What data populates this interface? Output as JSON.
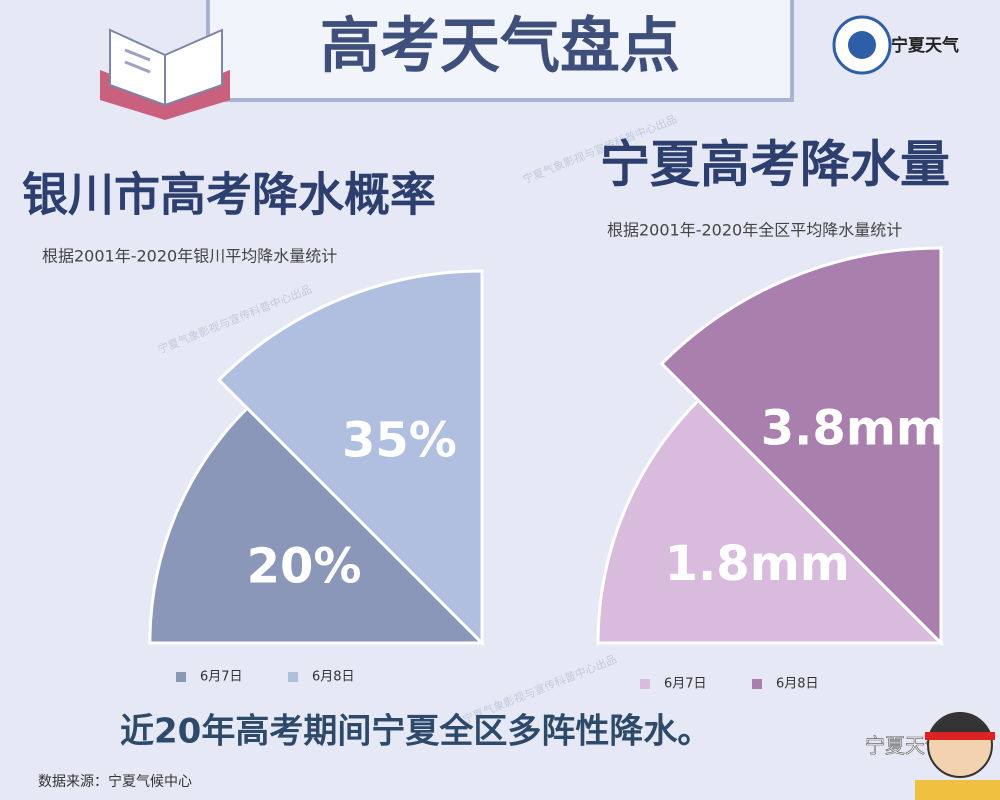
{
  "header": {
    "title": "高考天气盘点",
    "logo": "宁夏天气",
    "watermark": "宁夏气象影视与宣传科普中心出品"
  },
  "chart_data": [
    {
      "type": "rose",
      "title": "银川市高考降水概率",
      "subtitle": "根据2001年-2020年银川平均降水量统计",
      "categories": [
        "6月7日",
        "6月8日"
      ],
      "values": [
        20,
        35
      ],
      "value_labels": [
        "20%",
        "35%"
      ],
      "colors": [
        "#8a97b9",
        "#b0bee0"
      ]
    },
    {
      "type": "rose",
      "title": "宁夏高考降水量",
      "subtitle": "根据2001年-2020年全区平均降水量统计",
      "categories": [
        "6月7日",
        "6月8日"
      ],
      "values": [
        1.8,
        3.8
      ],
      "value_labels": [
        "1.8mm",
        "3.8mm"
      ],
      "colors": [
        "#d9bbdd",
        "#a97fad"
      ]
    }
  ],
  "footer": {
    "summary": "近20年高考期间宁夏全区多阵性降水。",
    "source": "数据来源：宁夏气候中心",
    "wechat": "宁夏天气"
  }
}
